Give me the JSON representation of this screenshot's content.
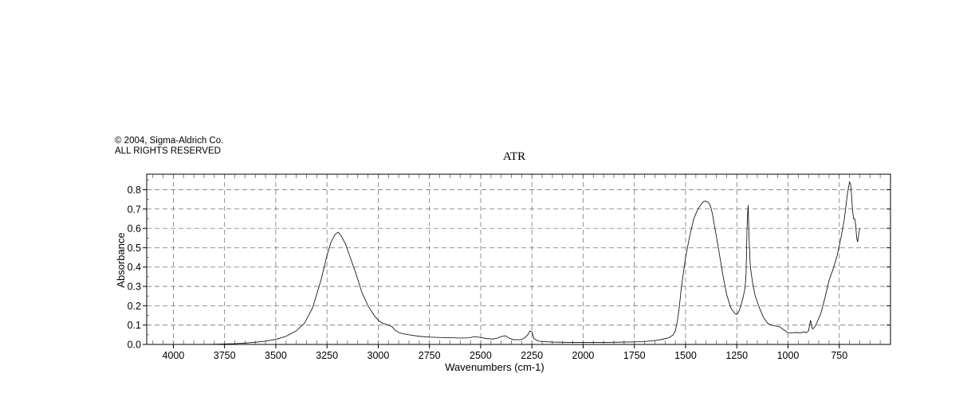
{
  "copyright": {
    "line1": "© 2004, Sigma-Aldrich Co.",
    "line2": "ALL RIGHTS RESERVED"
  },
  "chart_data": {
    "type": "line",
    "title": "ATR",
    "xlabel": "Wavenumbers (cm-1)",
    "ylabel": "Absorbance",
    "xlim": [
      4130,
      500
    ],
    "ylim": [
      0,
      0.88
    ],
    "x_ticks": [
      4000,
      3750,
      3500,
      3250,
      3000,
      2750,
      2500,
      2250,
      2000,
      1750,
      1500,
      1250,
      1000,
      750
    ],
    "y_ticks": [
      0.0,
      0.1,
      0.2,
      0.3,
      0.4,
      0.5,
      0.6,
      0.7,
      0.8
    ],
    "y_tick_labels": [
      "0.0",
      "0.1",
      "0.2",
      "0.3",
      "0.4",
      "0.5",
      "0.6",
      "0.7",
      "0.8"
    ],
    "grid": true,
    "line_color": "#000000",
    "series": [
      {
        "x": [
          4130,
          4000,
          3900,
          3800,
          3700,
          3650,
          3600,
          3550,
          3500,
          3450,
          3400,
          3360,
          3320,
          3280,
          3250,
          3230,
          3210,
          3195,
          3180,
          3160,
          3140,
          3110,
          3080,
          3050,
          3020,
          3000,
          2980,
          2950,
          2930,
          2920,
          2900,
          2880,
          2850,
          2800,
          2750,
          2700,
          2650,
          2600,
          2560,
          2530,
          2500,
          2470,
          2440,
          2420,
          2400,
          2380,
          2360,
          2340,
          2310,
          2290,
          2270,
          2260,
          2250,
          2240,
          2220,
          2200,
          2150,
          2100,
          2050,
          2000,
          1950,
          1900,
          1850,
          1800,
          1750,
          1700,
          1650,
          1620,
          1600,
          1580,
          1560,
          1550,
          1540,
          1530,
          1520,
          1500,
          1480,
          1460,
          1440,
          1420,
          1410,
          1400,
          1390,
          1380,
          1370,
          1360,
          1340,
          1320,
          1300,
          1280,
          1260,
          1250,
          1240,
          1230,
          1220,
          1210,
          1205,
          1200,
          1195,
          1190,
          1185,
          1180,
          1170,
          1160,
          1140,
          1120,
          1100,
          1080,
          1060,
          1040,
          1020,
          1000,
          980,
          960,
          940,
          920,
          910,
          900,
          895,
          890,
          885,
          880,
          870,
          860,
          840,
          820,
          800,
          780,
          760,
          740,
          725,
          710,
          700,
          695,
          690,
          685,
          680,
          675,
          670,
          665,
          660,
          655,
          650
        ],
        "y": [
          0.0,
          0.0,
          0.0,
          0.001,
          0.004,
          0.007,
          0.011,
          0.017,
          0.026,
          0.042,
          0.07,
          0.11,
          0.19,
          0.33,
          0.46,
          0.53,
          0.57,
          0.58,
          0.56,
          0.52,
          0.46,
          0.37,
          0.27,
          0.2,
          0.15,
          0.125,
          0.11,
          0.1,
          0.09,
          0.075,
          0.062,
          0.055,
          0.05,
          0.042,
          0.038,
          0.036,
          0.035,
          0.033,
          0.034,
          0.04,
          0.036,
          0.03,
          0.028,
          0.032,
          0.04,
          0.045,
          0.032,
          0.025,
          0.024,
          0.03,
          0.05,
          0.07,
          0.065,
          0.03,
          0.018,
          0.015,
          0.012,
          0.011,
          0.01,
          0.01,
          0.01,
          0.01,
          0.011,
          0.012,
          0.013,
          0.015,
          0.02,
          0.025,
          0.03,
          0.035,
          0.05,
          0.07,
          0.12,
          0.2,
          0.3,
          0.45,
          0.56,
          0.65,
          0.7,
          0.73,
          0.74,
          0.74,
          0.735,
          0.72,
          0.68,
          0.62,
          0.5,
          0.37,
          0.26,
          0.19,
          0.16,
          0.155,
          0.17,
          0.2,
          0.24,
          0.29,
          0.36,
          0.6,
          0.72,
          0.55,
          0.42,
          0.37,
          0.3,
          0.25,
          0.19,
          0.14,
          0.11,
          0.1,
          0.095,
          0.09,
          0.075,
          0.06,
          0.06,
          0.062,
          0.06,
          0.065,
          0.06,
          0.07,
          0.1,
          0.125,
          0.095,
          0.08,
          0.09,
          0.11,
          0.16,
          0.24,
          0.33,
          0.39,
          0.46,
          0.56,
          0.65,
          0.78,
          0.84,
          0.83,
          0.77,
          0.69,
          0.65,
          0.65,
          0.62,
          0.55,
          0.53,
          0.57,
          0.6
        ]
      }
    ]
  }
}
